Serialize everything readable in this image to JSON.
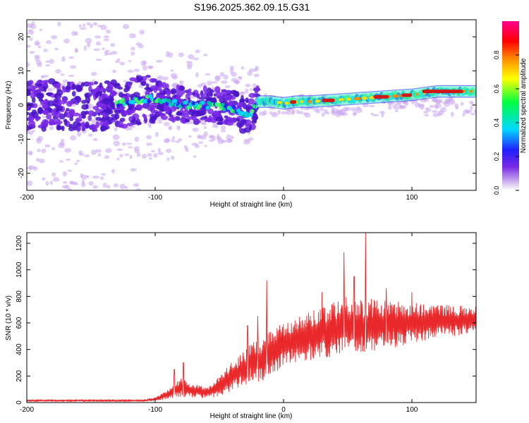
{
  "figure_title": "S196.2025.362.09.15.G31",
  "colors": {
    "snr_line": "#e8282a",
    "frame": "#000000",
    "dominant_track": "#d01818",
    "scatter_light": "#c9a6ef",
    "scatter_mid": "#7a28e6",
    "scatter_dark": "#4a14c8"
  },
  "chart_data": [
    {
      "type": "heatmap",
      "name": "spectrogram",
      "title": "",
      "xlabel": "Height of straight line (km)",
      "ylabel": "Frequency (Hz)",
      "xlim": [
        -200,
        150
      ],
      "ylim": [
        -25,
        25
      ],
      "x_ticks": [
        -200,
        -100,
        0,
        100
      ],
      "x_tick_labels": [
        "-200",
        "-100",
        "0",
        "100"
      ],
      "y_ticks": [
        -20,
        -10,
        0,
        10,
        20
      ],
      "y_tick_labels": [
        "-20",
        "-10",
        "0",
        "10",
        "20"
      ],
      "colorbar": {
        "label": "Normalized spectral amplitude",
        "range": [
          0,
          1
        ],
        "ticks": [
          0,
          0.2,
          0.4,
          0.6,
          0.8
        ],
        "tick_labels": [
          "0.0",
          "0.2",
          "0.4",
          "0.6",
          "0.8"
        ],
        "colormap": [
          "#d8c4ef",
          "#7a28e6",
          "#2020ff",
          "#00d8ff",
          "#00ff40",
          "#ffff00",
          "#ff8800",
          "#ff0000",
          "#ff0090"
        ]
      },
      "dominant_frequency_track": {
        "x": [
          -200,
          -180,
          -160,
          -140,
          -120,
          -100,
          -80,
          -60,
          -40,
          -30,
          -25,
          -20,
          -10,
          0,
          10,
          20,
          40,
          60,
          80,
          100,
          120,
          140,
          150
        ],
        "y": [
          0,
          0,
          -1,
          0,
          1,
          2,
          0,
          0,
          -1,
          -3,
          -2,
          1,
          1,
          0.5,
          1,
          1,
          1.5,
          2,
          2.5,
          3,
          4,
          4,
          4
        ]
      }
    },
    {
      "type": "line",
      "name": "snr",
      "title": "",
      "xlabel": "Height of straight line (km)",
      "ylabel": "SNR (10 * v/v)",
      "xlim": [
        -200,
        150
      ],
      "ylim": [
        0,
        1280
      ],
      "x_ticks": [
        -200,
        -100,
        0,
        100
      ],
      "x_tick_labels": [
        "-200",
        "-100",
        "0",
        "100"
      ],
      "y_ticks": [
        0,
        200,
        400,
        600,
        800,
        1000,
        1200
      ],
      "y_tick_labels": [
        "0",
        "200",
        "400",
        "600",
        "800",
        "1000",
        "1200"
      ],
      "series": [
        {
          "name": "SNR",
          "envelope": {
            "x": [
              -200,
              -150,
              -110,
              -100,
              -90,
              -80,
              -70,
              -60,
              -50,
              -40,
              -30,
              -25,
              -20,
              -10,
              0,
              10,
              20,
              30,
              40,
              50,
              60,
              70,
              80,
              90,
              100,
              110,
              120,
              130,
              140,
              150
            ],
            "mean": [
              15,
              15,
              15,
              25,
              60,
              110,
              90,
              75,
              120,
              200,
              260,
              320,
              300,
              380,
              450,
              470,
              500,
              530,
              560,
              580,
              570,
              580,
              590,
              590,
              600,
              610,
              610,
              620,
              620,
              630
            ],
            "amplitude": [
              8,
              8,
              8,
              12,
              35,
              70,
              50,
              40,
              80,
              110,
              130,
              150,
              160,
              170,
              180,
              170,
              180,
              200,
              220,
              230,
              210,
              200,
              180,
              170,
              150,
              140,
              130,
              120,
              110,
              110
            ]
          },
          "peaks": [
            {
              "x": -85,
              "y": 250
            },
            {
              "x": -78,
              "y": 300
            },
            {
              "x": -28,
              "y": 580
            },
            {
              "x": -20,
              "y": 650
            },
            {
              "x": -13,
              "y": 920
            },
            {
              "x": 30,
              "y": 830
            },
            {
              "x": 47,
              "y": 1130
            },
            {
              "x": 55,
              "y": 950
            },
            {
              "x": 64,
              "y": 1280
            },
            {
              "x": 80,
              "y": 860
            },
            {
              "x": 100,
              "y": 830
            }
          ]
        }
      ]
    }
  ]
}
